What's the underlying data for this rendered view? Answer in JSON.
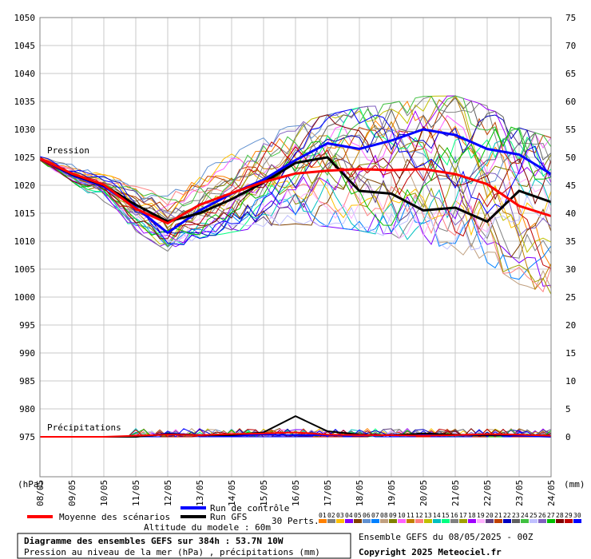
{
  "chart_data": {
    "type": "line",
    "x": [
      "08/05",
      "09/05",
      "10/05",
      "11/05",
      "12/05",
      "13/05",
      "14/05",
      "15/05",
      "16/05",
      "17/05",
      "18/05",
      "19/05",
      "20/05",
      "21/05",
      "22/05",
      "23/05",
      "24/05"
    ],
    "left_axis": {
      "unit": "(hPa)",
      "range": [
        975,
        1050
      ],
      "ticks": [
        "1050",
        "1045",
        "1040",
        "1035",
        "1030",
        "1025",
        "1020",
        "1015",
        "1010",
        "1005",
        "1000",
        "995",
        "990",
        "985",
        "980",
        "975"
      ]
    },
    "right_axis": {
      "unit": "(mm)",
      "range": [
        0,
        75
      ],
      "ticks": [
        "75",
        "70",
        "65",
        "60",
        "55",
        "50",
        "45",
        "40",
        "35",
        "30",
        "25",
        "20",
        "15",
        "10",
        "5",
        "0"
      ]
    },
    "labels": {
      "pressure": "Pression",
      "precip": "Précipitations"
    },
    "series": [
      {
        "name": "Moyenne des scénarios",
        "color": "#ff0000",
        "pressure": [
          1024.8,
          1022.1,
          1020.1,
          1015.8,
          1013.2,
          1016.5,
          1018.6,
          1020.6,
          1022.1,
          1022.6,
          1022.9,
          1022.7,
          1022.9,
          1022.0,
          1020.2,
          1016.3,
          1014.5
        ],
        "precip": [
          0,
          0,
          0,
          0.2,
          0.4,
          0.3,
          0.5,
          0.6,
          0.8,
          0.4,
          0.3,
          0.3,
          0.2,
          0.3,
          0.5,
          0.4,
          0.2
        ]
      },
      {
        "name": "Run de contrôle",
        "color": "#0000ff",
        "pressure": [
          1024.8,
          1021.8,
          1019.8,
          1016.0,
          1011.5,
          1015.5,
          1018.5,
          1021.0,
          1024.5,
          1027.5,
          1026.5,
          1028.0,
          1030.0,
          1029.0,
          1026.5,
          1025.5,
          1022.0
        ],
        "precip": [
          0,
          0,
          0,
          0,
          0.6,
          0.3,
          0.2,
          0.4,
          0.3,
          0.3,
          0.2,
          0.4,
          0.4,
          0.3,
          0.3,
          0.2,
          0
        ]
      },
      {
        "name": "Run GFS",
        "color": "#000000",
        "pressure": [
          1024.8,
          1022.0,
          1020.0,
          1016.5,
          1013.5,
          1015.0,
          1017.5,
          1020.5,
          1024.0,
          1025.0,
          1019.0,
          1018.5,
          1015.5,
          1016.0,
          1013.5,
          1019.0,
          1017.0
        ],
        "precip": [
          0,
          0,
          0,
          0,
          0.5,
          0.3,
          0.3,
          0.8,
          3.7,
          1.0,
          0.4,
          0.3,
          0.6,
          0.4,
          0.3,
          0.4,
          0.2
        ]
      }
    ],
    "perturbations": {
      "label": "30 Perts.",
      "numbers": [
        "01",
        "02",
        "03",
        "04",
        "05",
        "06",
        "07",
        "08",
        "09",
        "10",
        "11",
        "12",
        "13",
        "14",
        "15",
        "16",
        "17",
        "18",
        "19",
        "20",
        "21",
        "22",
        "23",
        "24",
        "25",
        "26",
        "27",
        "28",
        "29",
        "30"
      ],
      "colors": [
        "#ff8000",
        "#808080",
        "#ffc000",
        "#8000ff",
        "#804000",
        "#6090d0",
        "#0080ff",
        "#c0a080",
        "#808000",
        "#ff60ff",
        "#c08000",
        "#ff8080",
        "#c0c000",
        "#00c0c0",
        "#00ff80",
        "#808080",
        "#a0a000",
        "#a000ff",
        "#ffb0ff",
        "#604080",
        "#c04000",
        "#0000c0",
        "#606060",
        "#40c040",
        "#c0c0ff",
        "#8060c0",
        "#00c000",
        "#800000",
        "#c00000",
        "#0000ff"
      ]
    },
    "grid": true,
    "legend_position": "bottom"
  },
  "footer": {
    "altitude": "Altitude du modele : 60m",
    "title": "Diagramme des ensembles GEFS sur 384h : 53.7N 10W",
    "subtitle": "Pression au niveau de la mer (hPa) , précipitations (mm)",
    "run": "Ensemble GEFS du 08/05/2025 - 00Z",
    "copyright": "Copyright 2025 Meteociel.fr"
  }
}
